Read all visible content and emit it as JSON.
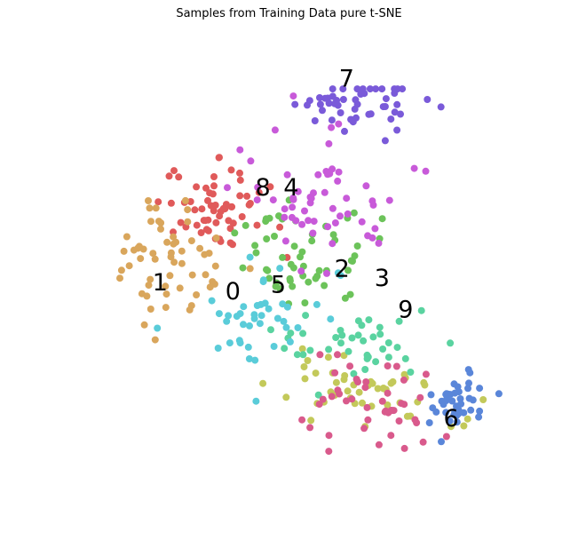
{
  "chart_data": {
    "type": "scatter",
    "title": "Samples from Training Data pure t-SNE",
    "xlabel": "",
    "ylabel": "",
    "xlim": [
      0,
      100
    ],
    "ylim": [
      0,
      100
    ],
    "grid": false,
    "axes_visible": false,
    "legend": "none",
    "palette": {
      "0": "#e05a5a",
      "1": "#d9a65c",
      "2": "#c3c95a",
      "3": "#6cc35a",
      "4": "#5ad3a0",
      "5": "#5accd9",
      "6": "#5a86d9",
      "7": "#7a5ad9",
      "8": "#c85ad9",
      "9": "#d95a8c"
    },
    "cluster_labels": [
      {
        "text": "0",
        "x": 36.0,
        "y": 54.0
      },
      {
        "text": "1",
        "x": 20.0,
        "y": 56.0
      },
      {
        "text": "2",
        "x": 60.0,
        "y": 59.0
      },
      {
        "text": "3",
        "x": 68.8,
        "y": 57.0
      },
      {
        "text": "4",
        "x": 48.8,
        "y": 77.0
      },
      {
        "text": "5",
        "x": 46.0,
        "y": 55.5
      },
      {
        "text": "6",
        "x": 84.0,
        "y": 26.0
      },
      {
        "text": "7",
        "x": 61.0,
        "y": 101.0
      },
      {
        "text": "8",
        "x": 42.6,
        "y": 77.0
      },
      {
        "text": "9",
        "x": 74.0,
        "y": 50.0
      }
    ],
    "clusters": [
      {
        "label": "0",
        "cx": 33,
        "cy": 72,
        "sx": 11,
        "sy": 8,
        "n": 60
      },
      {
        "label": "1",
        "cx": 23,
        "cy": 62,
        "sx": 11,
        "sy": 13,
        "n": 58
      },
      {
        "label": "2",
        "cx": 66,
        "cy": 33,
        "sx": 16,
        "sy": 8,
        "n": 48
      },
      {
        "label": "3",
        "cx": 52,
        "cy": 63,
        "sx": 16,
        "sy": 12,
        "n": 55
      },
      {
        "label": "4",
        "cx": 61,
        "cy": 44,
        "sx": 14,
        "sy": 8,
        "n": 40
      },
      {
        "label": "5",
        "cx": 43,
        "cy": 47,
        "sx": 14,
        "sy": 10,
        "n": 42
      },
      {
        "label": "6",
        "cx": 85,
        "cy": 29,
        "sx": 5,
        "sy": 5,
        "n": 42
      },
      {
        "label": "7",
        "cx": 66,
        "cy": 96,
        "sx": 13,
        "sy": 6,
        "n": 50
      },
      {
        "label": "8",
        "cx": 54,
        "cy": 76,
        "sx": 18,
        "sy": 14,
        "n": 58
      },
      {
        "label": "9",
        "cx": 65,
        "cy": 30,
        "sx": 17,
        "sy": 10,
        "n": 45
      }
    ]
  }
}
